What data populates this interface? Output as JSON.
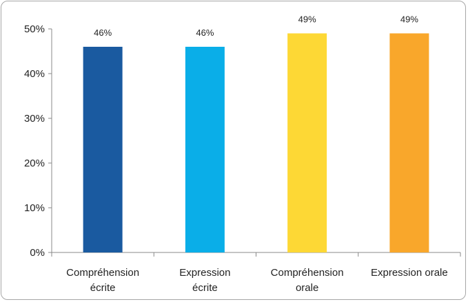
{
  "chart_data": {
    "type": "bar",
    "categories": [
      [
        "Compréhension",
        "écrite"
      ],
      [
        "Expression",
        "écrite"
      ],
      [
        "Compréhension",
        "orale"
      ],
      [
        "Expression orale"
      ]
    ],
    "values": [
      46,
      46,
      49,
      49
    ],
    "data_labels": [
      "46%",
      "46%",
      "49%",
      "49%"
    ],
    "colors": [
      "#1a5aa0",
      "#0aaee8",
      "#fdd835",
      "#f9a72b"
    ],
    "y_ticks": [
      "0%",
      "10%",
      "20%",
      "30%",
      "40%",
      "50%"
    ],
    "ylim": [
      0,
      50
    ],
    "title": "",
    "xlabel": "",
    "ylabel": "",
    "grid": false,
    "legend": "none"
  }
}
